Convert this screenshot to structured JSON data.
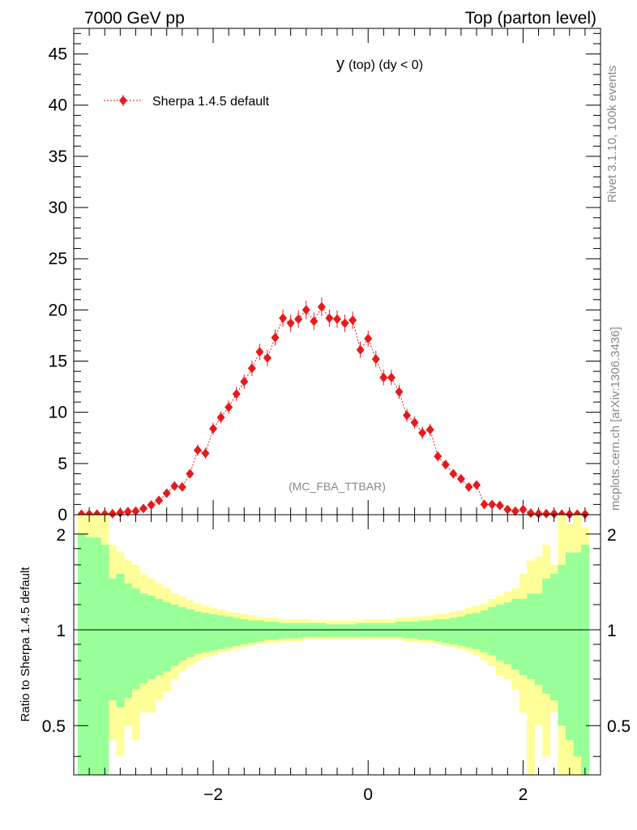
{
  "header": {
    "left": "7000 GeV pp",
    "right": "Top (parton level)"
  },
  "side_text": {
    "rivet": "Rivet 3.1.10,  100k events",
    "mcplots": "mcplots.cern.ch [arXiv:1306.3436]"
  },
  "colors": {
    "series": "#e8191b",
    "band_inner": "#99ff99",
    "band_outer": "#ffff99",
    "axis": "#000000",
    "watermark": "#888888"
  },
  "chart_data": [
    {
      "type": "scatter",
      "panel": "main",
      "title_main": "y",
      "title_rest": "(top) (dy < 0)",
      "analysis_label": "(MC_FBA_TTBAR)",
      "legend": {
        "position": "top-left",
        "entries": [
          "Sherpa 1.4.5 default"
        ]
      },
      "ylim": [
        0,
        47.5
      ],
      "xlim": [
        -3.8,
        3.0
      ],
      "yticks": [
        0,
        5,
        10,
        15,
        20,
        25,
        30,
        35,
        40,
        45
      ],
      "ytick_labels": [
        "0",
        "5",
        "10",
        "15",
        "20",
        "25",
        "30",
        "35",
        "40",
        "45"
      ],
      "series": [
        {
          "name": "Sherpa 1.4.5 default",
          "x": [
            -3.7,
            -3.6,
            -3.5,
            -3.4,
            -3.3,
            -3.2,
            -3.1,
            -3.0,
            -2.9,
            -2.8,
            -2.7,
            -2.6,
            -2.5,
            -2.4,
            -2.3,
            -2.2,
            -2.1,
            -2.0,
            -1.9,
            -1.8,
            -1.7,
            -1.6,
            -1.5,
            -1.4,
            -1.3,
            -1.2,
            -1.1,
            -1.0,
            -0.9,
            -0.8,
            -0.7,
            -0.6,
            -0.5,
            -0.4,
            -0.3,
            -0.2,
            -0.1,
            0.0,
            0.1,
            0.2,
            0.3,
            0.4,
            0.5,
            0.6,
            0.7,
            0.8,
            0.9,
            1.0,
            1.1,
            1.2,
            1.3,
            1.4,
            1.5,
            1.6,
            1.7,
            1.8,
            1.9,
            2.0,
            2.1,
            2.2,
            2.3,
            2.4,
            2.5,
            2.6,
            2.7,
            2.8
          ],
          "y": [
            0.05,
            0.05,
            0.05,
            0.05,
            0.1,
            0.2,
            0.3,
            0.35,
            0.6,
            0.95,
            1.4,
            2.1,
            2.8,
            2.7,
            4.0,
            6.3,
            6.0,
            8.4,
            9.5,
            10.5,
            11.8,
            13.0,
            14.3,
            15.9,
            15.3,
            17.3,
            19.2,
            18.7,
            19.1,
            20.0,
            18.9,
            20.3,
            19.2,
            19.1,
            18.7,
            19.0,
            16.1,
            17.2,
            15.2,
            13.4,
            13.4,
            12.0,
            9.7,
            9.0,
            8.0,
            8.3,
            5.7,
            4.9,
            4.0,
            3.5,
            2.7,
            2.9,
            1.0,
            1.0,
            0.9,
            0.5,
            0.35,
            0.5,
            0.15,
            0.1,
            0.1,
            0.1,
            0.05,
            0.05,
            0.05,
            0.05
          ],
          "yerr": [
            0.05,
            0.05,
            0.05,
            0.05,
            0.08,
            0.1,
            0.12,
            0.15,
            0.18,
            0.22,
            0.28,
            0.32,
            0.38,
            0.38,
            0.45,
            0.55,
            0.55,
            0.6,
            0.6,
            0.65,
            0.7,
            0.7,
            0.75,
            0.8,
            0.8,
            0.8,
            0.85,
            0.85,
            0.85,
            0.9,
            0.85,
            0.9,
            0.85,
            0.85,
            0.85,
            0.85,
            0.8,
            0.8,
            0.8,
            0.75,
            0.75,
            0.7,
            0.65,
            0.6,
            0.6,
            0.6,
            0.5,
            0.45,
            0.42,
            0.4,
            0.35,
            0.35,
            0.22,
            0.22,
            0.2,
            0.16,
            0.12,
            0.16,
            0.08,
            0.06,
            0.06,
            0.06,
            0.05,
            0.05,
            0.05,
            0.05
          ]
        }
      ]
    },
    {
      "type": "area",
      "panel": "ratio",
      "ylabel": "Ratio to Sherpa 1.4.5 default",
      "xlim": [
        -3.8,
        3.0
      ],
      "ylim": [
        0.35,
        2.3
      ],
      "xticks": [
        -2,
        0,
        2
      ],
      "xtick_labels": [
        "−2",
        "0",
        "2"
      ],
      "yticks": [
        0.5,
        1,
        2
      ],
      "ytick_labels": [
        "0.5",
        "1",
        "2"
      ],
      "reference_line": 1,
      "bin_edges": [
        -3.75,
        -3.65,
        -3.55,
        -3.45,
        -3.35,
        -3.25,
        -3.15,
        -3.05,
        -2.95,
        -2.85,
        -2.75,
        -2.65,
        -2.55,
        -2.45,
        -2.35,
        -2.25,
        -2.15,
        -2.05,
        -1.95,
        -1.85,
        -1.75,
        -1.65,
        -1.55,
        -1.45,
        -1.35,
        -1.25,
        -1.15,
        -1.05,
        -0.95,
        -0.85,
        -0.75,
        -0.65,
        -0.55,
        -0.45,
        -0.35,
        -0.25,
        -0.15,
        -0.05,
        0.05,
        0.15,
        0.25,
        0.35,
        0.45,
        0.55,
        0.65,
        0.75,
        0.85,
        0.95,
        1.05,
        1.15,
        1.25,
        1.35,
        1.45,
        1.55,
        1.65,
        1.75,
        1.85,
        1.95,
        2.05,
        2.15,
        2.25,
        2.35,
        2.45,
        2.55,
        2.65,
        2.75,
        2.85
      ],
      "inner_band": {
        "up": [
          2.0,
          1.95,
          1.95,
          1.85,
          1.45,
          1.5,
          1.4,
          1.35,
          1.3,
          1.28,
          1.25,
          1.22,
          1.2,
          1.18,
          1.16,
          1.14,
          1.13,
          1.12,
          1.11,
          1.1,
          1.09,
          1.08,
          1.07,
          1.07,
          1.06,
          1.06,
          1.05,
          1.05,
          1.05,
          1.05,
          1.05,
          1.05,
          1.04,
          1.04,
          1.04,
          1.04,
          1.05,
          1.05,
          1.05,
          1.05,
          1.05,
          1.06,
          1.06,
          1.06,
          1.07,
          1.07,
          1.08,
          1.08,
          1.09,
          1.1,
          1.12,
          1.13,
          1.15,
          1.18,
          1.2,
          1.22,
          1.25,
          1.25,
          1.3,
          1.3,
          1.45,
          1.5,
          1.6,
          1.75,
          1.75,
          1.85
        ],
        "down": [
          0.3,
          0.3,
          0.3,
          0.3,
          0.6,
          0.57,
          0.61,
          0.65,
          0.68,
          0.7,
          0.72,
          0.74,
          0.77,
          0.8,
          0.82,
          0.84,
          0.85,
          0.86,
          0.87,
          0.88,
          0.89,
          0.9,
          0.91,
          0.92,
          0.93,
          0.93,
          0.94,
          0.94,
          0.94,
          0.95,
          0.95,
          0.95,
          0.95,
          0.95,
          0.95,
          0.95,
          0.95,
          0.95,
          0.95,
          0.95,
          0.95,
          0.95,
          0.94,
          0.94,
          0.93,
          0.93,
          0.92,
          0.91,
          0.9,
          0.89,
          0.88,
          0.87,
          0.85,
          0.83,
          0.8,
          0.78,
          0.75,
          0.72,
          0.7,
          0.67,
          0.63,
          0.6,
          0.5,
          0.45,
          0.4,
          0.35
        ]
      },
      "outer_band": {
        "up": [
          2.3,
          2.3,
          2.3,
          2.3,
          1.85,
          1.75,
          1.65,
          1.6,
          1.5,
          1.45,
          1.4,
          1.35,
          1.3,
          1.27,
          1.24,
          1.21,
          1.19,
          1.17,
          1.16,
          1.14,
          1.13,
          1.12,
          1.11,
          1.1,
          1.09,
          1.09,
          1.08,
          1.08,
          1.08,
          1.08,
          1.07,
          1.07,
          1.07,
          1.07,
          1.07,
          1.07,
          1.07,
          1.08,
          1.08,
          1.08,
          1.08,
          1.09,
          1.09,
          1.1,
          1.1,
          1.11,
          1.12,
          1.12,
          1.14,
          1.15,
          1.17,
          1.19,
          1.21,
          1.25,
          1.28,
          1.32,
          1.35,
          1.5,
          1.65,
          1.7,
          1.85,
          1.6,
          2.3,
          2.15,
          2.3,
          2.1
        ],
        "down": [
          0.3,
          0.3,
          0.3,
          0.3,
          0.45,
          0.4,
          0.5,
          0.45,
          0.55,
          0.55,
          0.6,
          0.64,
          0.7,
          0.74,
          0.77,
          0.8,
          0.82,
          0.83,
          0.85,
          0.86,
          0.87,
          0.88,
          0.89,
          0.9,
          0.91,
          0.91,
          0.92,
          0.92,
          0.92,
          0.93,
          0.93,
          0.93,
          0.93,
          0.93,
          0.93,
          0.93,
          0.93,
          0.93,
          0.93,
          0.93,
          0.93,
          0.93,
          0.92,
          0.92,
          0.91,
          0.91,
          0.9,
          0.89,
          0.88,
          0.87,
          0.85,
          0.83,
          0.8,
          0.77,
          0.72,
          0.7,
          0.65,
          0.55,
          0.35,
          0.5,
          0.4,
          0.55,
          0.3,
          0.3,
          0.3,
          0.3
        ]
      }
    }
  ]
}
